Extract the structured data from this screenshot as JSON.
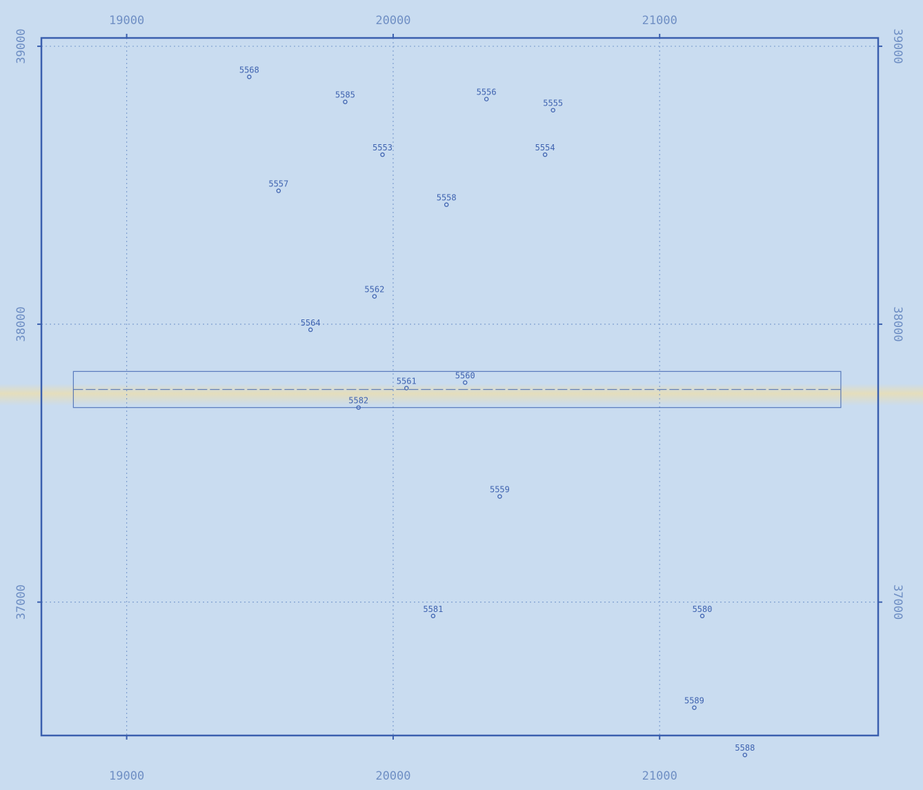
{
  "map": {
    "x_range": [
      18680,
      21820
    ],
    "y_range": [
      36520,
      39030
    ],
    "x_ticks": [
      19000,
      20000,
      21000
    ],
    "y_ticks": [
      37000,
      38000,
      39000
    ],
    "x_tick_labels": [
      "19000",
      "20000",
      "21000"
    ],
    "y_tick_labels": [
      "37000",
      "38000",
      "39000"
    ],
    "grid": "dotted",
    "colors": {
      "frame": "#3a5fae",
      "grid": "#7f9fd0",
      "label": "#3f63b0",
      "tick_label": "#6f8fc4",
      "paper": "#c9dcf0"
    }
  },
  "chart_data": {
    "type": "scatter",
    "x_range": [
      18680,
      21820
    ],
    "y_range": [
      36520,
      39030
    ],
    "points": [
      {
        "label": "5568",
        "x": 19460,
        "y": 38890
      },
      {
        "label": "5585",
        "x": 19820,
        "y": 38800
      },
      {
        "label": "5556",
        "x": 20350,
        "y": 38810
      },
      {
        "label": "5555",
        "x": 20600,
        "y": 38770
      },
      {
        "label": "5553",
        "x": 19960,
        "y": 38610
      },
      {
        "label": "5554",
        "x": 20570,
        "y": 38610
      },
      {
        "label": "5557",
        "x": 19570,
        "y": 38480
      },
      {
        "label": "5558",
        "x": 20200,
        "y": 38430
      },
      {
        "label": "5562",
        "x": 19930,
        "y": 38100
      },
      {
        "label": "5564",
        "x": 19690,
        "y": 37980
      },
      {
        "label": "5561",
        "x": 20050,
        "y": 37770
      },
      {
        "label": "5560",
        "x": 20270,
        "y": 37790
      },
      {
        "label": "5582",
        "x": 19870,
        "y": 37700
      },
      {
        "label": "5559",
        "x": 20400,
        "y": 37380
      },
      {
        "label": "5581",
        "x": 20150,
        "y": 36950
      },
      {
        "label": "5580",
        "x": 21160,
        "y": 36950
      },
      {
        "label": "5589",
        "x": 21130,
        "y": 36620
      },
      {
        "label": "5588",
        "x": 21320,
        "y": 36450
      }
    ],
    "rectangle": {
      "x": [
        18800,
        21680
      ],
      "y": [
        37700,
        37830
      ],
      "mid_y": 37765
    }
  }
}
